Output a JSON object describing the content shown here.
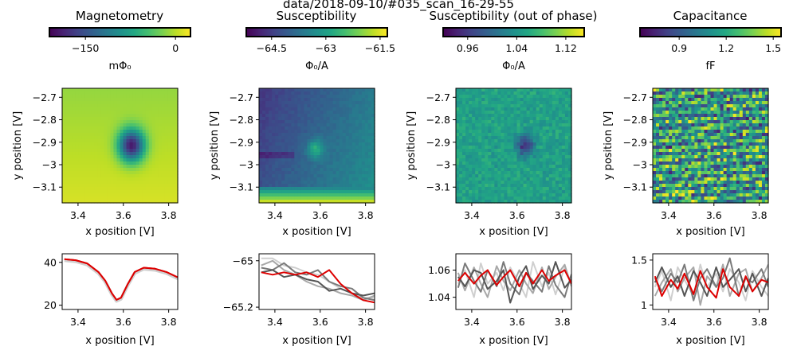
{
  "figure": {
    "suptitle": "data/2018-09-10/#035_scan_16-29-55",
    "xlabel": "x position [V]",
    "ylabel": "y position [V]"
  },
  "panels": [
    {
      "title": "Magnetometry",
      "cbar_label": "mΦ₀"
    },
    {
      "title": "Susceptibility",
      "cbar_label": "Φ₀/A"
    },
    {
      "title": "Susceptibility (out of phase)",
      "cbar_label": "Φ₀/A"
    },
    {
      "title": "Capacitance",
      "cbar_label": "fF"
    }
  ],
  "colors": {
    "cmap": "viridis",
    "line_red": "#dd0000",
    "line_grays": [
      "#cfcfcf",
      "#a8a8a8",
      "#7a7a7a",
      "#555555"
    ]
  },
  "chart_data": [
    {
      "type": "heatmap",
      "title": "Magnetometry",
      "xlabel": "x position [V]",
      "ylabel": "y position [V]",
      "xlim": [
        3.33,
        3.84
      ],
      "ylim": [
        -3.17,
        -2.66
      ],
      "xticks": [
        3.4,
        3.6,
        3.8
      ],
      "yticks": [
        -2.7,
        -2.8,
        -2.9,
        -3.0,
        -3.1
      ],
      "colorbar": {
        "label": "mΦ₀",
        "range": [
          -210,
          25
        ],
        "ticks": [
          -150,
          0
        ]
      },
      "features": "uniform background ~0 mΦ₀ with a single dark dipole minimum (~ -205 mΦ₀) at x≈3.57, y≈-2.93"
    },
    {
      "type": "heatmap",
      "title": "Susceptibility",
      "xlabel": "x position [V]",
      "ylabel": "y position [V]",
      "xlim": [
        3.33,
        3.84
      ],
      "ylim": [
        -3.17,
        -2.66
      ],
      "xticks": [
        3.4,
        3.6,
        3.8
      ],
      "yticks": [
        -2.7,
        -2.8,
        -2.9,
        -3.0,
        -3.1
      ],
      "colorbar": {
        "label": "Φ₀/A",
        "range": [
          -65.2,
          -61.3
        ],
        "ticks": [
          -64.5,
          -63.0,
          -61.5
        ]
      }
    },
    {
      "type": "heatmap",
      "title": "Susceptibility (out of phase)",
      "xlabel": "x position [V]",
      "ylabel": "y position [V]",
      "xlim": [
        3.33,
        3.84
      ],
      "ylim": [
        -3.17,
        -2.66
      ],
      "xticks": [
        3.4,
        3.6,
        3.8
      ],
      "yticks": [
        -2.7,
        -2.8,
        -2.9,
        -3.0,
        -3.1
      ],
      "colorbar": {
        "label": "Φ₀/A",
        "range": [
          0.92,
          1.15
        ],
        "ticks": [
          0.96,
          1.04,
          1.12
        ]
      }
    },
    {
      "type": "heatmap",
      "title": "Capacitance",
      "xlabel": "x position [V]",
      "ylabel": "y position [V]",
      "xlim": [
        3.33,
        3.84
      ],
      "ylim": [
        -3.17,
        -2.66
      ],
      "xticks": [
        3.4,
        3.6,
        3.8
      ],
      "yticks": [
        -2.7,
        -2.8,
        -2.9,
        -3.0,
        -3.1
      ],
      "colorbar": {
        "label": "fF",
        "range": [
          0.65,
          1.55
        ],
        "ticks": [
          0.9,
          1.2,
          1.5
        ]
      }
    },
    {
      "type": "line",
      "xlabel": "x position [V]",
      "xlim": [
        3.33,
        3.84
      ],
      "ylim": [
        18,
        44
      ],
      "xticks": [
        3.4,
        3.6,
        3.8
      ],
      "yticks": [
        20,
        40
      ],
      "x": [
        3.34,
        3.39,
        3.44,
        3.49,
        3.52,
        3.55,
        3.57,
        3.59,
        3.62,
        3.65,
        3.69,
        3.74,
        3.79,
        3.84
      ],
      "series": [
        {
          "values": [
            41.5,
            41.0,
            39.5,
            35.5,
            31.5,
            25.5,
            22.5,
            23.5,
            30.0,
            35.5,
            37.5,
            37.0,
            35.5,
            33.0
          ]
        }
      ]
    },
    {
      "type": "line",
      "xlabel": "x position [V]",
      "xlim": [
        3.33,
        3.84
      ],
      "ylim": [
        -65.21,
        -64.97
      ],
      "xticks": [
        3.4,
        3.6,
        3.8
      ],
      "yticks": [
        -65.0,
        -65.2
      ],
      "x": [
        3.34,
        3.39,
        3.44,
        3.49,
        3.54,
        3.59,
        3.64,
        3.69,
        3.74,
        3.79,
        3.84
      ],
      "series": [
        {
          "values": [
            -64.99,
            -64.99,
            -65.02,
            -65.03,
            -65.05,
            -65.06,
            -65.09,
            -65.12,
            -65.14,
            -65.16,
            -65.16
          ]
        },
        {
          "values": [
            -65.02,
            -65.0,
            -65.04,
            -65.06,
            -65.09,
            -65.11,
            -65.12,
            -65.14,
            -65.15,
            -65.17,
            -65.15
          ]
        },
        {
          "values": [
            -65.03,
            -65.04,
            -65.01,
            -65.05,
            -65.06,
            -65.04,
            -65.09,
            -65.11,
            -65.12,
            -65.16,
            -65.17
          ]
        },
        {
          "values": [
            -65.05,
            -65.04,
            -65.07,
            -65.06,
            -65.08,
            -65.09,
            -65.13,
            -65.12,
            -65.14,
            -65.15,
            -65.14
          ]
        },
        {
          "values": [
            -65.05,
            -65.06,
            -65.05,
            -65.06,
            -65.05,
            -65.07,
            -65.04,
            -65.1,
            -65.14,
            -65.17,
            -65.18
          ]
        }
      ]
    },
    {
      "type": "line",
      "xlabel": "x position [V]",
      "xlim": [
        3.33,
        3.84
      ],
      "ylim": [
        1.031,
        1.072
      ],
      "xticks": [
        3.4,
        3.6,
        3.8
      ],
      "yticks": [
        1.06,
        1.04
      ],
      "x": [
        3.34,
        3.37,
        3.41,
        3.44,
        3.47,
        3.51,
        3.54,
        3.57,
        3.61,
        3.64,
        3.67,
        3.71,
        3.74,
        3.77,
        3.81,
        3.84
      ],
      "series": [
        {
          "values": [
            1.05,
            1.06,
            1.04,
            1.065,
            1.05,
            1.058,
            1.045,
            1.062,
            1.05,
            1.04,
            1.066,
            1.048,
            1.058,
            1.042,
            1.062,
            1.05
          ]
        },
        {
          "values": [
            1.058,
            1.045,
            1.062,
            1.05,
            1.04,
            1.063,
            1.052,
            1.045,
            1.06,
            1.05,
            1.043,
            1.062,
            1.046,
            1.055,
            1.064,
            1.048
          ]
        },
        {
          "values": [
            1.047,
            1.065,
            1.052,
            1.044,
            1.06,
            1.048,
            1.066,
            1.05,
            1.042,
            1.058,
            1.052,
            1.044,
            1.063,
            1.049,
            1.04,
            1.057
          ]
        },
        {
          "values": [
            1.055,
            1.048,
            1.06,
            1.058,
            1.046,
            1.052,
            1.06,
            1.036,
            1.055,
            1.063,
            1.046,
            1.056,
            1.05,
            1.066,
            1.047,
            1.053
          ]
        },
        {
          "values": [
            1.052,
            1.058,
            1.05,
            1.056,
            1.06,
            1.049,
            1.055,
            1.06,
            1.048,
            1.058,
            1.05,
            1.06,
            1.052,
            1.056,
            1.06,
            1.05
          ]
        }
      ]
    },
    {
      "type": "line",
      "xlabel": "x position [V]",
      "xlim": [
        3.33,
        3.84
      ],
      "ylim": [
        0.95,
        1.57
      ],
      "xticks": [
        3.4,
        3.6,
        3.8
      ],
      "yticks": [
        1.5,
        1.0
      ],
      "x": [
        3.34,
        3.37,
        3.41,
        3.44,
        3.47,
        3.51,
        3.54,
        3.57,
        3.61,
        3.64,
        3.67,
        3.71,
        3.74,
        3.77,
        3.81,
        3.84
      ],
      "series": [
        {
          "values": [
            1.2,
            1.38,
            1.05,
            1.42,
            1.28,
            1.1,
            1.45,
            1.2,
            1.35,
            1.15,
            1.4,
            1.25,
            1.05,
            1.38,
            1.2,
            1.1
          ]
        },
        {
          "values": [
            1.1,
            1.25,
            1.4,
            1.15,
            1.3,
            1.42,
            1.0,
            1.32,
            1.2,
            1.45,
            1.1,
            1.35,
            1.4,
            1.15,
            1.3,
            1.45
          ]
        },
        {
          "values": [
            1.3,
            1.15,
            1.35,
            1.25,
            1.45,
            1.05,
            1.3,
            1.4,
            1.2,
            1.3,
            1.52,
            1.1,
            1.3,
            1.25,
            1.4,
            1.2
          ]
        },
        {
          "values": [
            1.25,
            1.42,
            1.2,
            1.32,
            1.1,
            1.38,
            1.25,
            1.1,
            1.42,
            1.2,
            1.28,
            1.4,
            1.15,
            1.35,
            1.1,
            1.3
          ]
        },
        {
          "values": [
            1.32,
            1.1,
            1.28,
            1.18,
            1.35,
            1.12,
            1.38,
            1.2,
            1.08,
            1.4,
            1.2,
            1.1,
            1.32,
            1.15,
            1.28,
            1.25
          ]
        }
      ]
    }
  ]
}
